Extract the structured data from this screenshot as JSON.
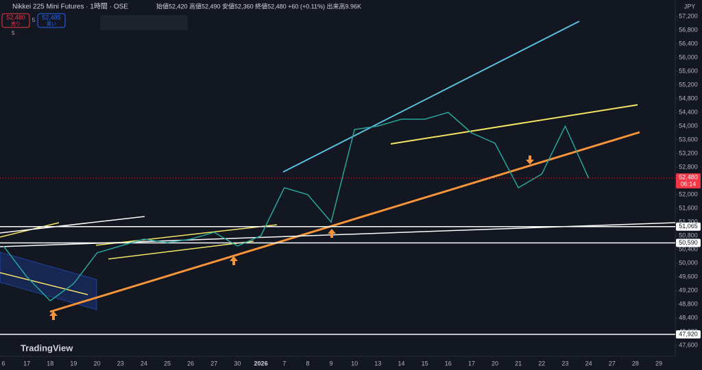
{
  "chart_data": {
    "type": "line",
    "title": "Nikkei 225 Mini Futures · 1時間 · OSE",
    "subtitle": "始値52,420 高値52,490 安値52,360 終値52,480 +60 (+0.11%) 出来高9.96K",
    "sell_price": "52,480",
    "sell_label": "売り",
    "buy_price": "52,485",
    "buy_label": "買い",
    "spread": "5",
    "indicator_count": "5",
    "currency": "JPY",
    "brand": "TradingView",
    "categories": [
      "6",
      "17",
      "18",
      "19",
      "20",
      "23",
      "24",
      "25",
      "26",
      "27",
      "30",
      "2026",
      "7",
      "8",
      "9",
      "10",
      "13",
      "14",
      "15",
      "16",
      "17",
      "20",
      "21",
      "22",
      "23",
      "24",
      "27",
      "28",
      "29"
    ],
    "series": [
      {
        "name": "Nikkei 225 Mini Futures",
        "color": "#26a69a",
        "values": [
          50500,
          49600,
          48900,
          49400,
          50300,
          50500,
          50700,
          50600,
          50700,
          50900,
          50500,
          50800,
          52200,
          52000,
          51200,
          53900,
          54000,
          54200,
          54200,
          54400,
          53800,
          53500,
          52200,
          52600,
          54000,
          52480,
          null,
          null,
          null
        ]
      }
    ],
    "ylim": [
      47400,
      57400
    ],
    "yticks": [
      {
        "value": 47600,
        "label": "47,600"
      },
      {
        "value": 48000,
        "label": "48,000"
      },
      {
        "value": 48400,
        "label": "48,400"
      },
      {
        "value": 48800,
        "label": "48,800"
      },
      {
        "value": 49200,
        "label": "49,200"
      },
      {
        "value": 49600,
        "label": "49,600"
      },
      {
        "value": 50000,
        "label": "50,000"
      },
      {
        "value": 50400,
        "label": "50,400"
      },
      {
        "value": 50800,
        "label": "50,800"
      },
      {
        "value": 51200,
        "label": "51,200"
      },
      {
        "value": 51600,
        "label": "51,600"
      },
      {
        "value": 52000,
        "label": "52,000"
      },
      {
        "value": 52400,
        "label": "52,400"
      },
      {
        "value": 52800,
        "label": "52,800"
      },
      {
        "value": 53200,
        "label": "53,200"
      },
      {
        "value": 53600,
        "label": "53,600"
      },
      {
        "value": 54000,
        "label": "54,000"
      },
      {
        "value": 54400,
        "label": "54,400"
      },
      {
        "value": 54800,
        "label": "54,800"
      },
      {
        "value": 55200,
        "label": "55,200"
      },
      {
        "value": 55600,
        "label": "55,600"
      },
      {
        "value": 56000,
        "label": "56,000"
      },
      {
        "value": 56400,
        "label": "56,400"
      },
      {
        "value": 56800,
        "label": "56,800"
      },
      {
        "value": 57200,
        "label": "57,200"
      }
    ],
    "hlines": [
      {
        "value": 51065,
        "label": "51,065"
      },
      {
        "value": 50590,
        "label": "50,590"
      },
      {
        "value": 47920,
        "label": "47,920"
      }
    ],
    "last_price": {
      "value": 52480,
      "label": "52,480"
    },
    "countdown": "06:14"
  }
}
